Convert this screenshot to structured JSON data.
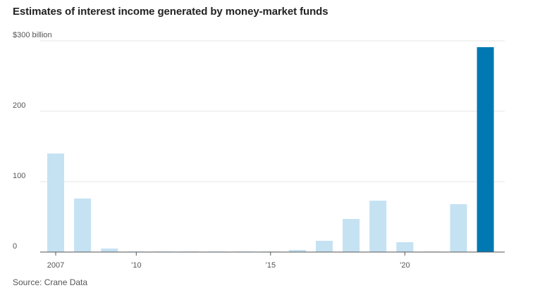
{
  "title": "Estimates of interest income generated by money-market funds",
  "source": "Source: Crane Data",
  "chart_data": {
    "type": "bar",
    "years": [
      2007,
      2008,
      2009,
      2010,
      2011,
      2012,
      2013,
      2014,
      2015,
      2016,
      2017,
      2018,
      2019,
      2020,
      2021,
      2022,
      2023
    ],
    "values": [
      140,
      76,
      5,
      0.8,
      0.8,
      0.8,
      0.8,
      0.8,
      0.8,
      3,
      16,
      47,
      73,
      14,
      0.8,
      68,
      291
    ],
    "highlight_index": 16,
    "colors": {
      "normal": "#c5e2f3",
      "highlight": "#0079b3",
      "grid": "#e6e6e6",
      "axis": "#555555"
    },
    "ylim": [
      0,
      300
    ],
    "y_ticks": [
      {
        "value": 300,
        "label": "$300 billion"
      },
      {
        "value": 200,
        "label": "200"
      },
      {
        "value": 100,
        "label": "100"
      },
      {
        "value": 0,
        "label": "0"
      }
    ],
    "x_ticks": [
      {
        "year": 2007,
        "label": "2007"
      },
      {
        "year": 2010,
        "label": "’10"
      },
      {
        "year": 2015,
        "label": "’15"
      },
      {
        "year": 2020,
        "label": "’20"
      }
    ],
    "grid": true
  }
}
